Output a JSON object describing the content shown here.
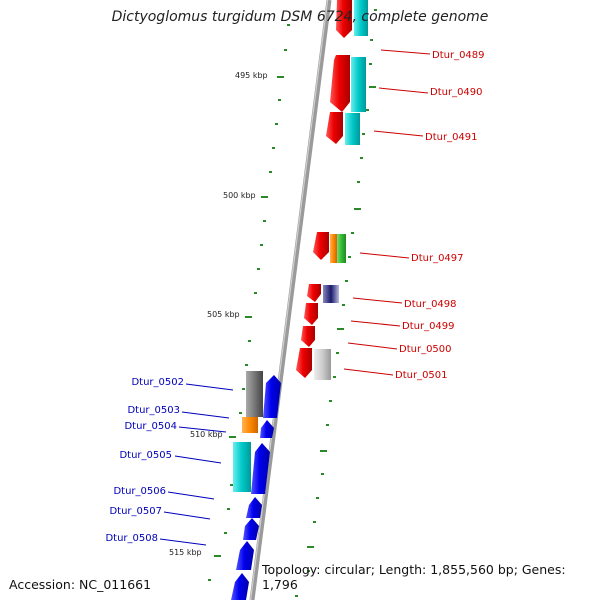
{
  "title": "Dictyoglomus turgidum DSM 6724, complete genome",
  "footer": {
    "accession": "Accession: NC_011661",
    "summary": "Topology: circular; Length: 1,855,560 bp; Genes: 1,796"
  },
  "ruler": {
    "labels": [
      "495 kbp",
      "500 kbp",
      "505 kbp",
      "510 kbp",
      "515 kbp"
    ]
  },
  "genes_top": [
    {
      "id": "Dtur_0489",
      "label": "Dtur_0489",
      "color": "#cc0000"
    },
    {
      "id": "Dtur_0490",
      "label": "Dtur_0490",
      "color": "#cc0000"
    },
    {
      "id": "Dtur_0491",
      "label": "Dtur_0491",
      "color": "#cc0000"
    },
    {
      "id": "Dtur_0497",
      "label": "Dtur_0497",
      "color": "#cc0000"
    },
    {
      "id": "Dtur_0498",
      "label": "Dtur_0498",
      "color": "#cc0000"
    },
    {
      "id": "Dtur_0499",
      "label": "Dtur_0499",
      "color": "#cc0000"
    },
    {
      "id": "Dtur_0500",
      "label": "Dtur_0500",
      "color": "#cc0000"
    },
    {
      "id": "Dtur_0501",
      "label": "Dtur_0501",
      "color": "#cc0000"
    }
  ],
  "genes_bottom": [
    {
      "id": "Dtur_0502",
      "label": "Dtur_0502",
      "color": "#0000bb"
    },
    {
      "id": "Dtur_0503",
      "label": "Dtur_0503",
      "color": "#0000bb"
    },
    {
      "id": "Dtur_0504",
      "label": "Dtur_0504",
      "color": "#0000bb"
    },
    {
      "id": "Dtur_0505",
      "label": "Dtur_0505",
      "color": "#0000bb"
    },
    {
      "id": "Dtur_0506",
      "label": "Dtur_0506",
      "color": "#0000bb"
    },
    {
      "id": "Dtur_0507",
      "label": "Dtur_0507",
      "color": "#0000bb"
    },
    {
      "id": "Dtur_0508",
      "label": "Dtur_0508",
      "color": "#0000bb"
    }
  ],
  "colors": {
    "forward_strand": "#ee0000",
    "reverse_strand": "#0000ee",
    "backbone": "#888888",
    "tick": "#2a8a2a",
    "cog_cyan": "#00c8c8",
    "cog_orange": "#ff8800",
    "cog_green": "#33bb33",
    "cog_gray": "#777777",
    "cog_navy": "#1a1a6e"
  }
}
